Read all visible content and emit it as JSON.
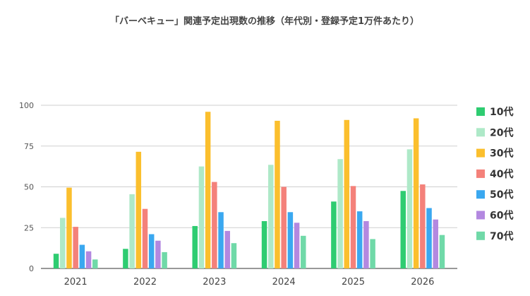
{
  "chart_data": {
    "type": "bar",
    "title": "「バーベキュー」関連予定出現数の推移（年代別・登録予定1万件あたり）",
    "xlabel": "",
    "ylabel": "",
    "categories": [
      "2021",
      "2022",
      "2023",
      "2024",
      "2025",
      "2026"
    ],
    "ylim": [
      0,
      100
    ],
    "yticks": [
      0,
      25,
      50,
      75,
      100
    ],
    "grid": true,
    "legend_position": "right",
    "series": [
      {
        "name": "10代",
        "color": "#2ecc71",
        "values": [
          9,
          12,
          26,
          29,
          41,
          47.5
        ]
      },
      {
        "name": "20代",
        "color": "#aee9c8",
        "values": [
          31,
          45.5,
          62.5,
          63.5,
          67,
          73
        ]
      },
      {
        "name": "30代",
        "color": "#fbbf2d",
        "values": [
          49.5,
          71.5,
          96,
          90.5,
          91,
          92
        ]
      },
      {
        "name": "40代",
        "color": "#f4817a",
        "values": [
          25.5,
          36.5,
          53,
          50,
          50.5,
          51.5
        ]
      },
      {
        "name": "50代",
        "color": "#3aa8f0",
        "values": [
          14.5,
          21,
          34.5,
          34.5,
          35,
          37
        ]
      },
      {
        "name": "60代",
        "color": "#b388e0",
        "values": [
          10.5,
          17,
          23,
          28,
          29,
          30
        ]
      },
      {
        "name": "70代",
        "color": "#70d9a8",
        "values": [
          5.5,
          10,
          15.5,
          20,
          18,
          20.5
        ]
      }
    ]
  }
}
